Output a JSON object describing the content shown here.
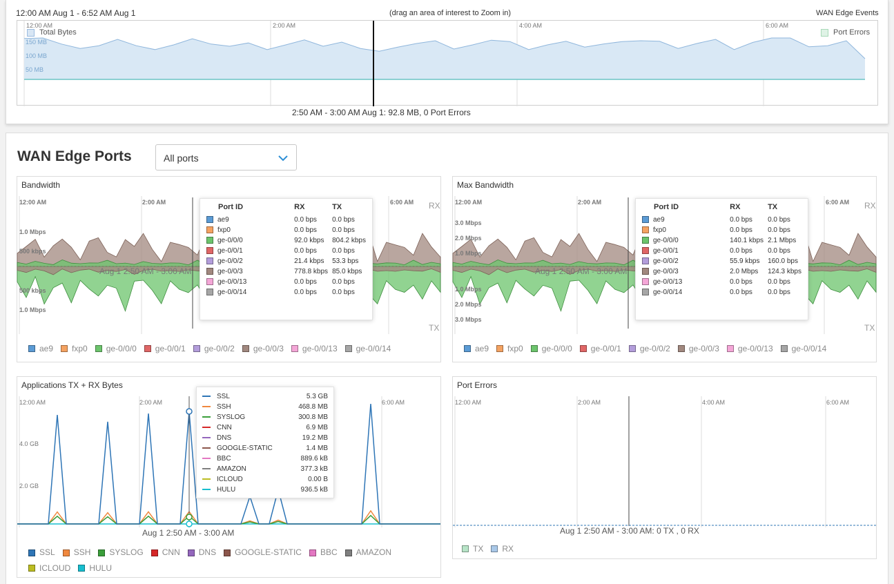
{
  "timeline": {
    "range_label": "12:00 AM Aug 1 - 6:52 AM Aug 1",
    "hint": "(drag an area of interest to Zoom in)",
    "title": "WAN Edge Events",
    "ticks": [
      "12:00 AM",
      "2:00 AM",
      "4:00 AM",
      "6:00 AM"
    ],
    "y_ticks": [
      "150 MB",
      "100 MB",
      "50 MB"
    ],
    "legend_total": "Total Bytes",
    "legend_errors": "Port Errors",
    "summary": "2:50 AM - 3:00 AM Aug 1: 92.8 MB, 0 Port Errors",
    "total_bytes_mb": [
      148,
      150,
      128,
      112,
      122,
      145,
      122,
      108,
      125,
      147,
      128,
      120,
      132,
      108,
      125,
      143,
      120,
      135,
      112,
      102,
      117,
      130,
      140,
      110,
      125,
      142,
      137,
      108,
      125,
      138,
      117,
      128,
      137,
      140,
      138,
      112,
      130,
      145,
      108,
      134,
      150,
      150,
      118,
      122,
      140,
      75
    ]
  },
  "ports": {
    "title": "WAN Edge Ports",
    "filter": "All ports"
  },
  "bandwidth": {
    "title": "Bandwidth",
    "ticks": [
      "12:00 AM",
      "2:00 AM",
      "6:00 AM"
    ],
    "y_top": [
      "1.0 Mbps",
      "500 kbps"
    ],
    "y_bottom": [
      "500 kbps",
      "1.0 Mbps"
    ],
    "rx": "RX",
    "tx": "TX",
    "hover_label": "Aug 1 2:50 AM - 3:00 AM",
    "tooltip_headers": [
      "Port ID",
      "RX",
      "TX"
    ],
    "rows": [
      {
        "port": "ae9",
        "rx": "0.0 bps",
        "tx": "0.0 bps",
        "color": "#5b9bd5"
      },
      {
        "port": "fxp0",
        "rx": "0.0 bps",
        "tx": "0.0 bps",
        "color": "#f4a261"
      },
      {
        "port": "ge-0/0/0",
        "rx": "92.0 kbps",
        "tx": "804.2 kbps",
        "color": "#6cc46c"
      },
      {
        "port": "ge-0/0/1",
        "rx": "0.0 bps",
        "tx": "0.0 bps",
        "color": "#e06666"
      },
      {
        "port": "ge-0/0/2",
        "rx": "21.4 kbps",
        "tx": "53.3 bps",
        "color": "#b39ddb"
      },
      {
        "port": "ge-0/0/3",
        "rx": "778.8 kbps",
        "tx": "85.0 kbps",
        "color": "#a1887f"
      },
      {
        "port": "ge-0/0/13",
        "rx": "0.0 bps",
        "tx": "0.0 bps",
        "color": "#f4a6d7"
      },
      {
        "port": "ge-0/0/14",
        "rx": "0.0 bps",
        "tx": "0.0 bps",
        "color": "#a6a6a6"
      }
    ],
    "legend": [
      "ae9",
      "fxp0",
      "ge-0/0/0",
      "ge-0/0/1",
      "ge-0/0/2",
      "ge-0/0/3",
      "ge-0/0/13",
      "ge-0/0/14"
    ]
  },
  "max_bandwidth": {
    "title": "Max Bandwidth",
    "ticks": [
      "12:00 AM",
      "2:00 AM",
      "6:00 AM"
    ],
    "y_top": [
      "3.0 Mbps",
      "2.0 Mbps",
      "1.0 Mbps"
    ],
    "y_bottom": [
      "1.0 Mbps",
      "2.0 Mbps",
      "3.0 Mbps"
    ],
    "rx": "RX",
    "tx": "TX",
    "hover_label": "Aug 1 2:50 AM - 3:00 AM",
    "tooltip_headers": [
      "Port ID",
      "RX",
      "TX"
    ],
    "rows": [
      {
        "port": "ae9",
        "rx": "0.0 bps",
        "tx": "0.0 bps",
        "color": "#5b9bd5"
      },
      {
        "port": "fxp0",
        "rx": "0.0 bps",
        "tx": "0.0 bps",
        "color": "#f4a261"
      },
      {
        "port": "ge-0/0/0",
        "rx": "140.1 kbps",
        "tx": "2.1 Mbps",
        "color": "#6cc46c"
      },
      {
        "port": "ge-0/0/1",
        "rx": "0.0 bps",
        "tx": "0.0 bps",
        "color": "#e06666"
      },
      {
        "port": "ge-0/0/2",
        "rx": "55.9 kbps",
        "tx": "160.0 bps",
        "color": "#b39ddb"
      },
      {
        "port": "ge-0/0/3",
        "rx": "2.0 Mbps",
        "tx": "124.3 kbps",
        "color": "#a1887f"
      },
      {
        "port": "ge-0/0/13",
        "rx": "0.0 bps",
        "tx": "0.0 bps",
        "color": "#f4a6d7"
      },
      {
        "port": "ge-0/0/14",
        "rx": "0.0 bps",
        "tx": "0.0 bps",
        "color": "#a6a6a6"
      }
    ],
    "legend": [
      "ae9",
      "fxp0",
      "ge-0/0/0",
      "ge-0/0/1",
      "ge-0/0/2",
      "ge-0/0/3",
      "ge-0/0/13",
      "ge-0/0/14"
    ]
  },
  "applications": {
    "title": "Applications TX + RX Bytes",
    "ticks": [
      "12:00 AM",
      "2:00 AM",
      "6:00 AM"
    ],
    "y_ticks": [
      "4.0 GB",
      "2.0 GB"
    ],
    "hover_label": "Aug 1 2:50 AM - 3:00 AM",
    "rows": [
      {
        "name": "SSL",
        "value": "5.3 GB",
        "color": "#2e75b6"
      },
      {
        "name": "SSH",
        "value": "468.8 MB",
        "color": "#f0883e"
      },
      {
        "name": "SYSLOG",
        "value": "300.8 MB",
        "color": "#3a9e3a"
      },
      {
        "name": "CNN",
        "value": "6.9 MB",
        "color": "#d62728"
      },
      {
        "name": "DNS",
        "value": "19.2 MB",
        "color": "#9467bd"
      },
      {
        "name": "GOOGLE-STATIC",
        "value": "1.4 MB",
        "color": "#8c564b"
      },
      {
        "name": "BBC",
        "value": "889.6 kB",
        "color": "#e377c2"
      },
      {
        "name": "AMAZON",
        "value": "377.3 kB",
        "color": "#7f7f7f"
      },
      {
        "name": "ICLOUD",
        "value": "0.00 B",
        "color": "#bcbd22"
      },
      {
        "name": "HULU",
        "value": "936.5 kB",
        "color": "#17becf"
      }
    ],
    "legend": [
      "SSL",
      "SSH",
      "SYSLOG",
      "CNN",
      "DNS",
      "GOOGLE-STATIC",
      "BBC",
      "AMAZON",
      "ICLOUD",
      "HULU"
    ]
  },
  "port_errors": {
    "title": "Port Errors",
    "ticks": [
      "12:00 AM",
      "2:00 AM",
      "4:00 AM",
      "6:00 AM"
    ],
    "hover_label": "Aug 1 2:50 AM - 3:00 AM: 0 TX , 0 RX",
    "legend": [
      {
        "name": "TX",
        "color": "#b7e4c7"
      },
      {
        "name": "RX",
        "color": "#a9c8e8"
      }
    ]
  }
}
